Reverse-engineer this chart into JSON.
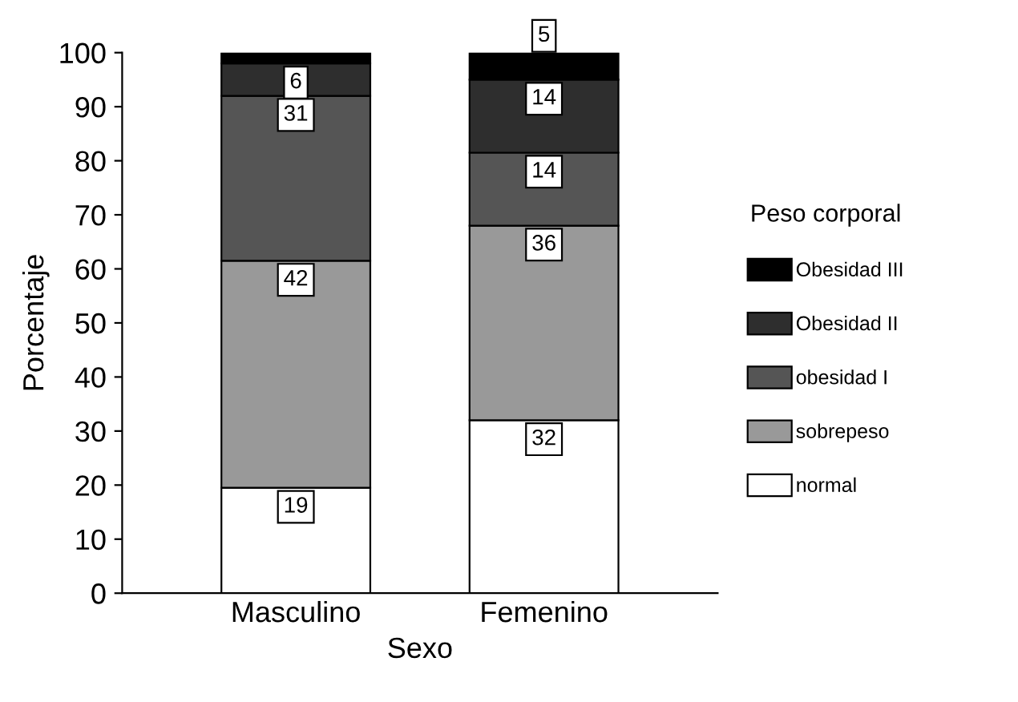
{
  "chart_data": {
    "type": "bar",
    "stacked": true,
    "xlabel": "Sexo",
    "ylabel": "Porcentaje",
    "legend_title": "Peso corporal",
    "legend": "right",
    "categories": [
      "Masculino",
      "Femenino"
    ],
    "series": [
      {
        "name": "normal",
        "color": "#ffffff",
        "values": [
          19.5,
          32
        ],
        "value_labels": [
          "19",
          "32"
        ]
      },
      {
        "name": "sobrepeso",
        "color": "#999999",
        "values": [
          42,
          36
        ],
        "value_labels": [
          "42",
          "36"
        ]
      },
      {
        "name": "obesidad I",
        "color": "#555555",
        "values": [
          30.5,
          13.5
        ],
        "value_labels": [
          "31",
          "14"
        ]
      },
      {
        "name": "Obesidad II",
        "color": "#2e2e2e",
        "values": [
          6,
          13.5
        ],
        "value_labels": [
          "6",
          "14"
        ]
      },
      {
        "name": "Obesidad III",
        "color": "#000000",
        "values": [
          2,
          5
        ],
        "value_labels": [
          null,
          "5"
        ]
      }
    ],
    "ylim": [
      0,
      100
    ],
    "yticks": [
      0,
      10,
      20,
      30,
      40,
      50,
      60,
      70,
      80,
      90,
      100
    ],
    "grid": false
  }
}
